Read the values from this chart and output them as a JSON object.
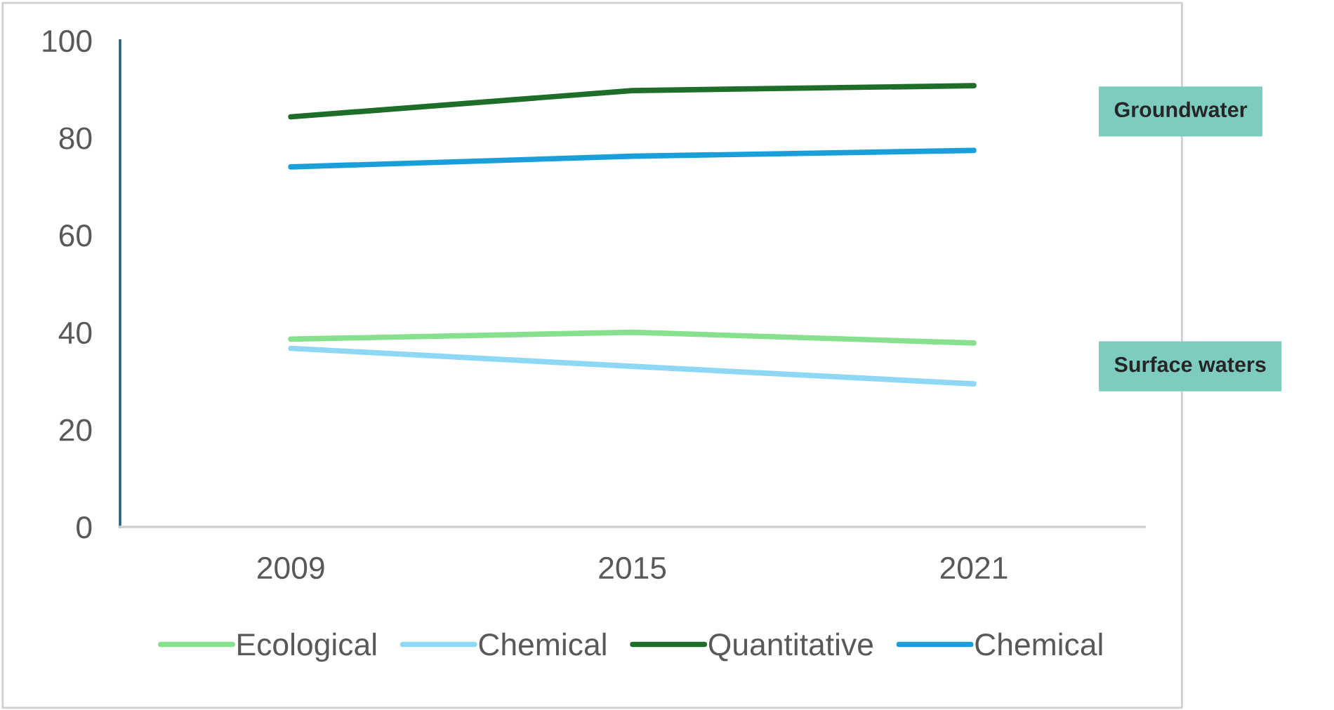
{
  "chart_data": {
    "type": "line",
    "categories": [
      "2009",
      "2015",
      "2021"
    ],
    "series": [
      {
        "name": "Ecological",
        "color": "#86e08e",
        "values": [
          38.6,
          40.0,
          37.8
        ]
      },
      {
        "name": "Chemical",
        "color": "#8fd8f5",
        "values": [
          36.7,
          33.0,
          29.4
        ]
      },
      {
        "name": "Quantitative",
        "color": "#1e6e2a",
        "values": [
          84.3,
          89.7,
          90.7
        ]
      },
      {
        "name": "Chemical",
        "color": "#1a9fdb",
        "values": [
          74.0,
          76.2,
          77.4
        ]
      }
    ],
    "ylim": [
      0,
      100
    ],
    "yticks": [
      0,
      20,
      40,
      60,
      80,
      100
    ],
    "annotations": [
      "Groundwater",
      "Surface waters"
    ],
    "legend": "bottom",
    "grid": false,
    "marker": "none",
    "line_style": "solid"
  }
}
